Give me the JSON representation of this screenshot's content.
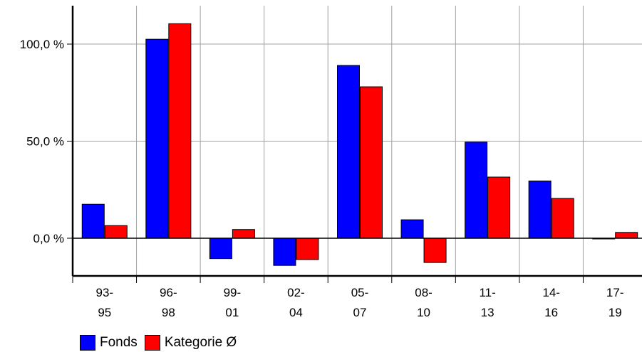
{
  "chart_data": {
    "type": "bar",
    "categories": [
      [
        "93-",
        "95"
      ],
      [
        "96-",
        "98"
      ],
      [
        "99-",
        "01"
      ],
      [
        "02-",
        "04"
      ],
      [
        "05-",
        "07"
      ],
      [
        "08-",
        "10"
      ],
      [
        "11-",
        "13"
      ],
      [
        "14-",
        "16"
      ],
      [
        "17-",
        "19"
      ]
    ],
    "series": [
      {
        "name": "Fonds",
        "color": "#0000ff",
        "values": [
          17.5,
          102.5,
          -10.5,
          -14.0,
          89.0,
          9.5,
          49.5,
          29.5,
          0.0
        ]
      },
      {
        "name": "Kategorie Ø",
        "color": "#ff0000",
        "values": [
          6.5,
          110.5,
          4.5,
          -11.0,
          78.0,
          -12.5,
          31.5,
          20.5,
          3.0
        ]
      }
    ],
    "y_ticks": [
      {
        "value": 0,
        "label": "0,0 %"
      },
      {
        "value": 50,
        "label": "50,0 %"
      },
      {
        "value": 100,
        "label": "100,0 %"
      }
    ],
    "ylim": [
      -20,
      120
    ],
    "grid": true,
    "legend_position": "bottom-left"
  }
}
